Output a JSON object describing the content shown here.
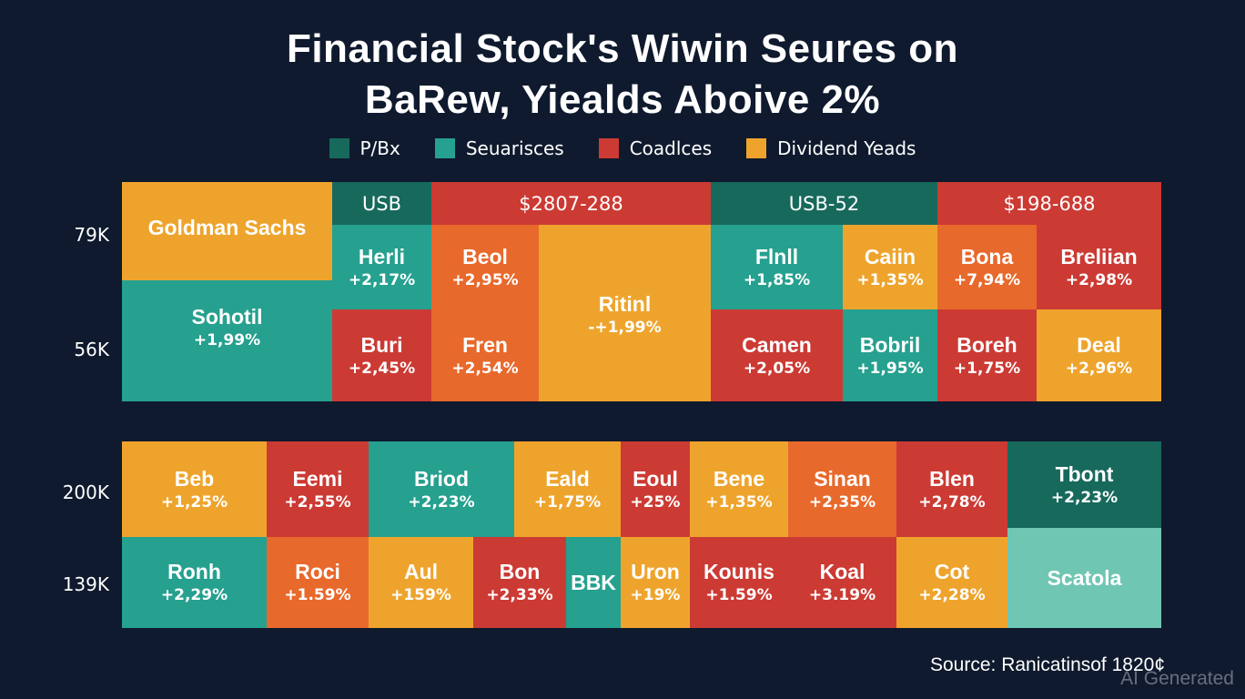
{
  "chart_data": {
    "type": "heatmap",
    "title_lines": [
      "Financial Stock's Wiwin Seures on",
      "BaRew, Yiealds Aboive 2%"
    ],
    "legend": [
      {
        "label": "P/Bx",
        "color": "#17695c"
      },
      {
        "label": "Seuarisces",
        "color": "#26a08f"
      },
      {
        "label": "Coadlces",
        "color": "#cc3a34"
      },
      {
        "label": "Dividend Yeads",
        "color": "#eea42c"
      }
    ],
    "row_labels": [
      "79K",
      "56K",
      "200K",
      "139K"
    ],
    "colors": {
      "dark_teal": "#17695c",
      "teal": "#26a08f",
      "red": "#cc3a34",
      "orange_red": "#e8692c",
      "orange": "#eea42c",
      "light_teal": "#6fc6b3"
    },
    "panels": [
      {
        "cells": [
          {
            "name": "Goldman Sachs",
            "value": "",
            "color": "orange"
          },
          {
            "name": "USB",
            "value": "",
            "color": "dark_teal",
            "header": true
          },
          {
            "name": "$2807-288",
            "value": "",
            "color": "red",
            "header": true
          },
          {
            "name": "USB-52",
            "value": "",
            "color": "dark_teal",
            "header": true
          },
          {
            "name": "$198-688",
            "value": "",
            "color": "red",
            "header": true
          },
          {
            "name": "Sohotil",
            "value": "+1,99%",
            "color": "teal"
          },
          {
            "name": "Herli",
            "value": "+2,17%",
            "color": "teal"
          },
          {
            "name": "Beol",
            "value": "+2,95%",
            "color": "orange_red"
          },
          {
            "name": "Ritinl",
            "value": "-+1,99%",
            "color": "orange"
          },
          {
            "name": "Flnll",
            "value": "+1,85%",
            "color": "teal"
          },
          {
            "name": "Caiin",
            "value": "+1,35%",
            "color": "orange"
          },
          {
            "name": "Bona",
            "value": "+7,94%",
            "color": "orange_red"
          },
          {
            "name": "Breliian",
            "value": "+2,98%",
            "color": "red"
          },
          {
            "name": "Buri",
            "value": "+2,45%",
            "color": "red"
          },
          {
            "name": "Fren",
            "value": "+2,54%",
            "color": "orange_red"
          },
          {
            "name": "Camen",
            "value": "+2,05%",
            "color": "red"
          },
          {
            "name": "Bobril",
            "value": "+1,95%",
            "color": "teal"
          },
          {
            "name": "Boreh",
            "value": "+1,75%",
            "color": "red"
          },
          {
            "name": "Deal",
            "value": "+2,96%",
            "color": "orange"
          }
        ]
      },
      {
        "cells": [
          {
            "name": "Beb",
            "value": "+1,25%",
            "color": "orange"
          },
          {
            "name": "Eemi",
            "value": "+2,55%",
            "color": "red"
          },
          {
            "name": "Briod",
            "value": "+2,23%",
            "color": "teal"
          },
          {
            "name": "Eald",
            "value": "+1,75%",
            "color": "orange"
          },
          {
            "name": "Eoul",
            "value": "+25%",
            "color": "red"
          },
          {
            "name": "Bene",
            "value": "+1,35%",
            "color": "orange"
          },
          {
            "name": "Sinan",
            "value": "+2,35%",
            "color": "orange_red"
          },
          {
            "name": "Blen",
            "value": "+2,78%",
            "color": "red"
          },
          {
            "name": "Tbont",
            "value": "+2,23%",
            "color": "dark_teal"
          },
          {
            "name": "Ronh",
            "value": "+2,29%",
            "color": "teal"
          },
          {
            "name": "Roci",
            "value": "+1.59%",
            "color": "orange_red"
          },
          {
            "name": "Aul",
            "value": "+159%",
            "color": "orange"
          },
          {
            "name": "Bon",
            "value": "+2,33%",
            "color": "red"
          },
          {
            "name": "BBK",
            "value": "",
            "color": "teal"
          },
          {
            "name": "Uron",
            "value": "+19%",
            "color": "orange"
          },
          {
            "name": "Kounis",
            "value": "+1.59%",
            "color": "red"
          },
          {
            "name": "Koal",
            "value": "+3.19%",
            "color": "red"
          },
          {
            "name": "Cot",
            "value": "+2,28%",
            "color": "orange"
          },
          {
            "name": "Scatola",
            "value": "",
            "color": "light_teal"
          }
        ]
      }
    ]
  },
  "source": "Source: Ranicatinsof 1820¢",
  "watermark": "AI Generated"
}
